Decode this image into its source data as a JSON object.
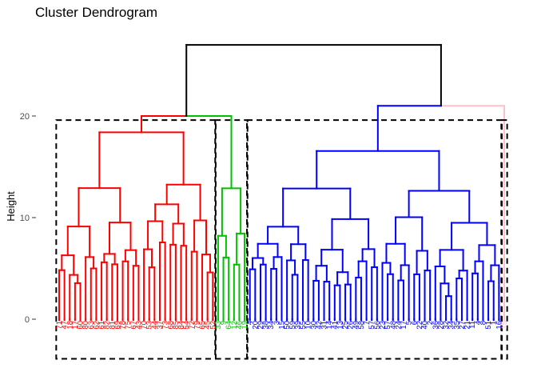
{
  "chart_data": {
    "type": "dendrogram",
    "title": "Cluster Dendrogram",
    "xlabel": "",
    "ylabel": "Height",
    "yticks": [
      0,
      10,
      20
    ],
    "ylim": [
      -1.5,
      27.5
    ],
    "grid": false,
    "root_height": 27,
    "clusters": [
      {
        "color": "#ff0000",
        "merge_height": 20,
        "leaves": [
          "71",
          "47",
          "18",
          "17",
          "60",
          "80",
          "63",
          "62",
          "61",
          "82",
          "81",
          "69",
          "78",
          "75",
          "67",
          "43",
          "70",
          "53",
          "44",
          "37",
          "73",
          "68",
          "85",
          "84",
          "54",
          "72",
          "79",
          "65",
          "45",
          "52"
        ]
      },
      {
        "color": "#00c000",
        "merge_height": 14,
        "leaves": [
          "33",
          "9",
          "64",
          "12",
          "46",
          "19"
        ]
      },
      {
        "color": "#0000ff",
        "merge_height": 18,
        "leaves": [
          "4",
          "20",
          "29",
          "38",
          "34",
          "3",
          "15",
          "50",
          "59",
          "39",
          "55",
          "10",
          "30",
          "42",
          "31",
          "14",
          "41",
          "13",
          "25",
          "26",
          "49",
          "58",
          "7",
          "57",
          "56",
          "23",
          "57",
          "48",
          "24",
          "17",
          "5",
          "6",
          "22",
          "40",
          "2",
          "36",
          "28",
          "32",
          "34",
          "35",
          "27",
          "21",
          "11",
          "4",
          "8",
          "51",
          "1",
          "16"
        ]
      },
      {
        "color": "#ffc0cb",
        "merge_height": 21,
        "leaves": [
          "15"
        ]
      }
    ],
    "upper_merges": [
      {
        "color": "#0000ff",
        "height": 21
      },
      {
        "color": "#ff0000",
        "height": 20
      },
      {
        "color": "#000000",
        "height": 27
      }
    ],
    "annotation": "dashed rectangles around each cluster"
  }
}
